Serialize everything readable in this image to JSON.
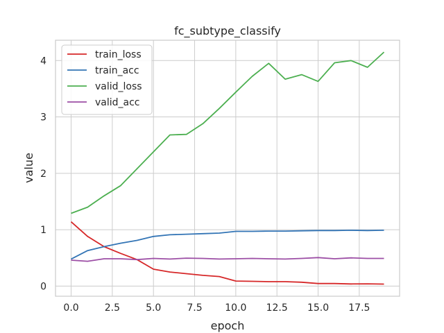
{
  "chart_data": {
    "type": "line",
    "title": "fc_subtype_classify",
    "xlabel": "epoch",
    "ylabel": "value",
    "xlim": [
      -0.95,
      19.95
    ],
    "ylim": [
      -0.18,
      4.36
    ],
    "xticks": [
      "0.0",
      "2.5",
      "5.0",
      "7.5",
      "10.0",
      "12.5",
      "15.0",
      "17.5"
    ],
    "yticks": [
      "0",
      "1",
      "2",
      "3",
      "4"
    ],
    "grid": true,
    "legend_position": "top-left",
    "x": [
      0,
      1,
      2,
      3,
      4,
      5,
      6,
      7,
      8,
      9,
      10,
      11,
      12,
      13,
      14,
      15,
      16,
      17,
      18,
      19
    ],
    "series": [
      {
        "name": "train_loss",
        "color": "#d62728",
        "values": [
          1.14,
          0.88,
          0.7,
          0.58,
          0.47,
          0.3,
          0.25,
          0.22,
          0.19,
          0.17,
          0.09,
          0.085,
          0.078,
          0.078,
          0.068,
          0.045,
          0.045,
          0.038,
          0.04,
          0.035
        ]
      },
      {
        "name": "train_acc",
        "color": "#3274b5",
        "values": [
          0.48,
          0.63,
          0.7,
          0.76,
          0.81,
          0.88,
          0.91,
          0.92,
          0.93,
          0.94,
          0.97,
          0.97,
          0.975,
          0.975,
          0.98,
          0.985,
          0.985,
          0.99,
          0.985,
          0.99
        ]
      },
      {
        "name": "valid_loss",
        "color": "#4caf50",
        "values": [
          1.29,
          1.4,
          1.6,
          1.78,
          2.08,
          2.38,
          2.68,
          2.69,
          2.88,
          3.15,
          3.44,
          3.72,
          3.95,
          3.67,
          3.75,
          3.63,
          3.96,
          4.0,
          3.88,
          4.15
        ]
      },
      {
        "name": "valid_acc",
        "color": "#9c4ea5",
        "values": [
          0.46,
          0.44,
          0.485,
          0.485,
          0.47,
          0.49,
          0.48,
          0.495,
          0.49,
          0.48,
          0.485,
          0.49,
          0.485,
          0.48,
          0.49,
          0.505,
          0.485,
          0.5,
          0.49,
          0.49
        ]
      }
    ]
  }
}
